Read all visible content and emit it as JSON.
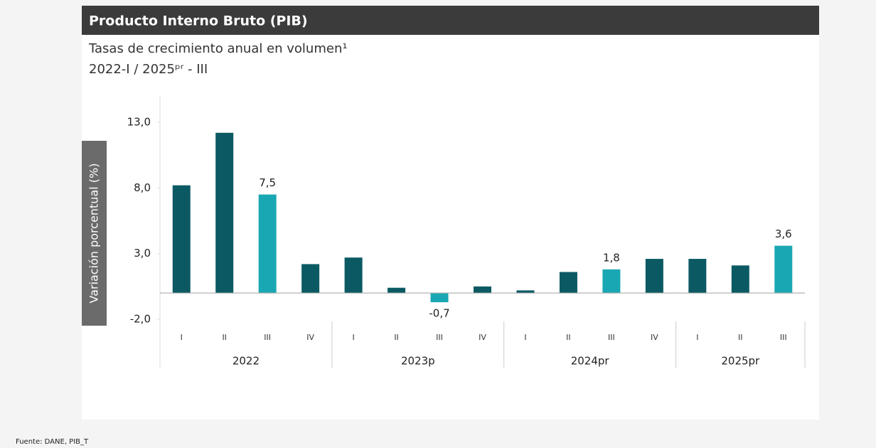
{
  "chart_data": {
    "type": "bar",
    "title": "Producto Interno Bruto (PIB)",
    "subtitle": "Tasas de crecimiento anual en volumen¹",
    "period": "2022-I / 2025ᵖʳ - III",
    "y_label": "Variación porcentual (%)",
    "source": "Fuente: DANE, PIB_T",
    "groups": [
      {
        "name": "2022",
        "categories": [
          "I",
          "II",
          "III",
          "IV"
        ]
      },
      {
        "name": "2023p",
        "categories": [
          "I",
          "II",
          "III",
          "IV"
        ]
      },
      {
        "name": "2024pr",
        "categories": [
          "I",
          "II",
          "III",
          "IV"
        ]
      },
      {
        "name": "2025pr",
        "categories": [
          "I",
          "II",
          "III"
        ]
      }
    ],
    "values": [
      8.2,
      12.2,
      7.5,
      2.2,
      2.7,
      0.4,
      -0.7,
      0.5,
      0.2,
      1.6,
      1.8,
      2.6,
      2.6,
      2.1,
      3.6
    ],
    "value_labels": [
      null,
      null,
      "7,5",
      null,
      null,
      null,
      "-0,7",
      null,
      null,
      null,
      "1,8",
      null,
      null,
      null,
      "3,6"
    ],
    "colors": [
      "#0b5a63",
      "#0b5a63",
      "#19a8b3",
      "#0b5a63",
      "#0b5a63",
      "#0b5a63",
      "#19a8b3",
      "#0b5a63",
      "#0b5a63",
      "#0b5a63",
      "#19a8b3",
      "#0b5a63",
      "#0b5a63",
      "#0b5a63",
      "#19a8b3"
    ],
    "ylim": [
      -2,
      15
    ],
    "yticks": [
      {
        "value": -2,
        "label": "-2,0"
      },
      {
        "value": 3,
        "label": "3,0"
      },
      {
        "value": 8,
        "label": "8,0"
      },
      {
        "value": 13,
        "label": "13,0"
      }
    ],
    "grid": false
  }
}
